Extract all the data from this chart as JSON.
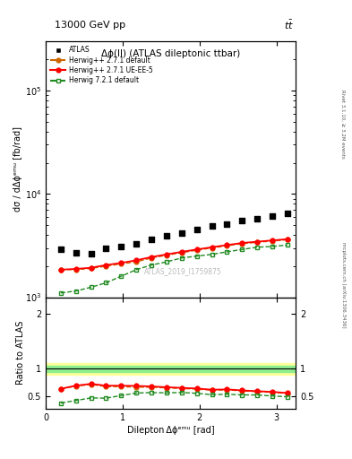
{
  "title_top": "13000 GeV pp",
  "title_top_right": "tt",
  "plot_title": "Δϕ(ll) (ATLAS dileptonic ttbar)",
  "xlabel": "Dilepton Δϕᵉᵐᵘ [rad]",
  "ylabel_main": "dσ / dΔϕᵉᵐᵘ [fb/rad]",
  "ylabel_ratio": "Ratio to ATLAS",
  "right_label_top": "Rivet 3.1.10, ≥ 3.2M events",
  "right_label_bottom": "mcplots.cern.ch [arXiv:1306.3436]",
  "watermark": "ATLAS_2019_I1759875",
  "x_atlas": [
    0.196,
    0.393,
    0.589,
    0.785,
    0.982,
    1.178,
    1.374,
    1.571,
    1.767,
    1.963,
    2.16,
    2.356,
    2.552,
    2.749,
    2.945,
    3.141
  ],
  "y_atlas": [
    2900,
    2700,
    2650,
    2950,
    3100,
    3300,
    3600,
    3900,
    4200,
    4500,
    4900,
    5100,
    5500,
    5800,
    6100,
    6500
  ],
  "x_hw271def": [
    0.196,
    0.393,
    0.589,
    0.785,
    0.982,
    1.178,
    1.374,
    1.571,
    1.767,
    1.963,
    2.16,
    2.356,
    2.552,
    2.749,
    2.945,
    3.141
  ],
  "y_hw271def": [
    1850,
    1850,
    1900,
    2000,
    2100,
    2200,
    2400,
    2550,
    2700,
    2850,
    3000,
    3150,
    3300,
    3400,
    3500,
    3600
  ],
  "x_hw271ue": [
    0.196,
    0.393,
    0.589,
    0.785,
    0.982,
    1.178,
    1.374,
    1.571,
    1.767,
    1.963,
    2.16,
    2.356,
    2.552,
    2.749,
    2.945,
    3.141
  ],
  "y_hw271ue": [
    1850,
    1880,
    1930,
    2050,
    2150,
    2280,
    2450,
    2600,
    2750,
    2900,
    3050,
    3200,
    3350,
    3450,
    3550,
    3650
  ],
  "x_hw721def": [
    0.196,
    0.393,
    0.589,
    0.785,
    0.982,
    1.178,
    1.374,
    1.571,
    1.767,
    1.963,
    2.16,
    2.356,
    2.552,
    2.749,
    2.945,
    3.141
  ],
  "y_hw721def": [
    1100,
    1150,
    1250,
    1380,
    1600,
    1850,
    2050,
    2200,
    2400,
    2500,
    2600,
    2750,
    2900,
    3050,
    3100,
    3200
  ],
  "ratio_hw271def": [
    0.638,
    0.685,
    0.717,
    0.678,
    0.677,
    0.667,
    0.667,
    0.654,
    0.643,
    0.633,
    0.612,
    0.618,
    0.6,
    0.586,
    0.574,
    0.554
  ],
  "ratio_hw271ue": [
    0.638,
    0.696,
    0.728,
    0.695,
    0.694,
    0.691,
    0.681,
    0.667,
    0.655,
    0.644,
    0.622,
    0.627,
    0.609,
    0.595,
    0.582,
    0.562
  ],
  "ratio_hw721def": [
    0.379,
    0.426,
    0.472,
    0.468,
    0.516,
    0.561,
    0.569,
    0.564,
    0.571,
    0.556,
    0.531,
    0.539,
    0.527,
    0.526,
    0.508,
    0.492
  ],
  "atlas_band_inner_color": "#90ee90",
  "atlas_band_outer_color": "#ffff99",
  "atlas_band_inner_half": 0.05,
  "atlas_band_outer_half": 0.1,
  "color_atlas": "#000000",
  "color_hw271def": "#cc6600",
  "color_hw271ue": "#ff0000",
  "color_hw721def": "#228b22",
  "ylim_main": [
    1000,
    300000
  ],
  "ylim_ratio": [
    0.28,
    2.3
  ],
  "xlim": [
    0.0,
    3.25
  ],
  "yticks_ratio_left": [
    0.5,
    1.0,
    2.0
  ],
  "yticks_ratio_right": [
    0.5,
    1.0,
    2.0
  ]
}
